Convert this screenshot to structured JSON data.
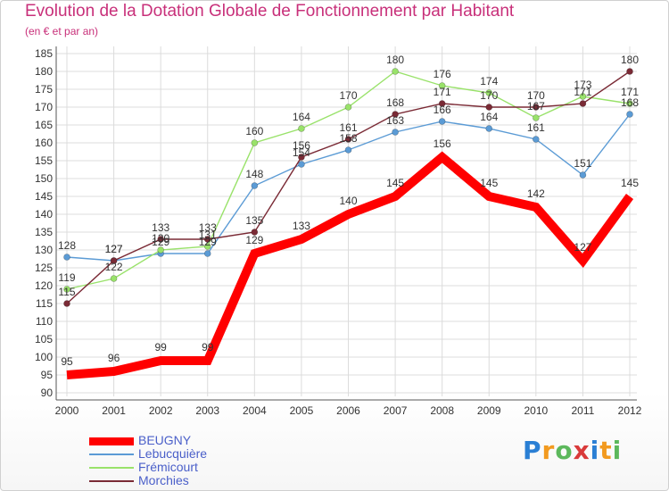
{
  "header": {
    "title": "Evolution de la Dotation Globale de Fonctionnement par Habitant",
    "subtitle": "(en € et par an)"
  },
  "chart_data": {
    "type": "line",
    "title": "Evolution de la Dotation Globale de Fonctionnement par Habitant",
    "subtitle": "(en € et par an)",
    "xlabel": "",
    "ylabel": "",
    "categories": [
      "2000",
      "2001",
      "2002",
      "2003",
      "2004",
      "2005",
      "2006",
      "2007",
      "2008",
      "2009",
      "2010",
      "2011",
      "2012"
    ],
    "ylim": [
      90,
      185
    ],
    "ytick_step": 5,
    "grid": true,
    "legend_position": "bottom-left",
    "series": [
      {
        "name": "BEUGNY",
        "color": "#ff0000",
        "emphasis": true,
        "values": [
          95,
          96,
          99,
          99,
          129,
          133,
          140,
          145,
          156,
          145,
          142,
          127,
          145
        ]
      },
      {
        "name": "Lebucquière",
        "color": "#5b9bd5",
        "emphasis": false,
        "values": [
          128,
          127,
          129,
          129,
          148,
          154,
          158,
          163,
          166,
          164,
          161,
          151,
          168
        ]
      },
      {
        "name": "Frémicourt",
        "color": "#99e26a",
        "emphasis": false,
        "values": [
          119,
          122,
          130,
          131,
          160,
          164,
          170,
          180,
          176,
          174,
          167,
          173,
          171
        ]
      },
      {
        "name": "Morchies",
        "color": "#7a2a35",
        "emphasis": false,
        "values": [
          115,
          127,
          133,
          133,
          135,
          156,
          161,
          168,
          171,
          170,
          170,
          171,
          180
        ]
      }
    ]
  },
  "logo": {
    "letters": [
      "P",
      "r",
      "o",
      "x",
      "i",
      "t",
      "i"
    ],
    "colors": [
      "#2a7fd4",
      "#f29a1f",
      "#5cb85c",
      "#d93a3a",
      "#2a7fd4",
      "#f29a1f",
      "#5cb85c"
    ]
  }
}
